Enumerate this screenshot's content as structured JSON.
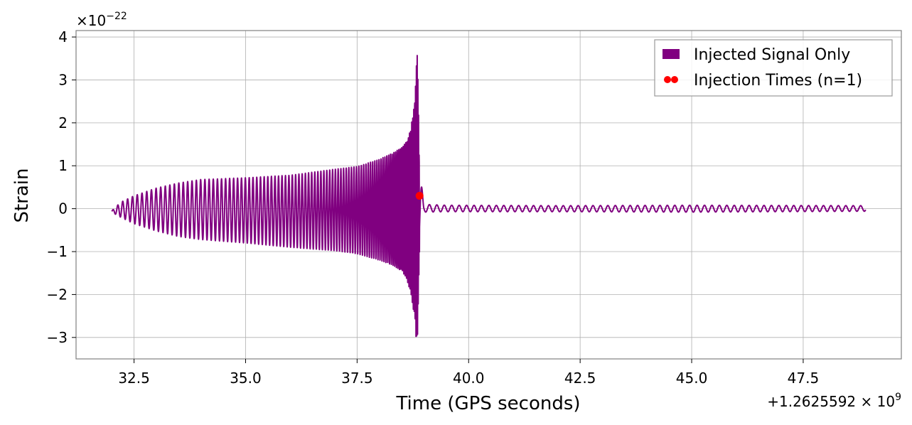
{
  "chart_data": {
    "type": "line",
    "xlabel": "Time (GPS seconds)",
    "ylabel": "Strain",
    "x_offset_label": "+1.2625592 × 10",
    "x_offset_exponent": "9",
    "y_scale_label": "×10",
    "y_scale_exponent": "−22",
    "xlim": [
      31.2,
      49.7
    ],
    "ylim": [
      -3.5,
      4.15
    ],
    "x_ticks": [
      32.5,
      35.0,
      37.5,
      40.0,
      42.5,
      45.0,
      47.5
    ],
    "x_tick_labels": [
      "32.5",
      "35.0",
      "37.5",
      "40.0",
      "42.5",
      "45.0",
      "47.5"
    ],
    "y_ticks": [
      -3,
      -2,
      -1,
      0,
      1,
      2,
      3,
      4
    ],
    "y_tick_labels": [
      "−3",
      "−2",
      "−1",
      "0",
      "1",
      "2",
      "3",
      "4"
    ],
    "grid": true,
    "legend_position": "top-right",
    "series": [
      {
        "name": "Injected Signal Only",
        "kind": "band",
        "color": "#800080",
        "envelope": {
          "x": [
            32.0,
            32.2,
            32.5,
            33.0,
            33.5,
            34.0,
            35.0,
            36.0,
            37.0,
            37.5,
            38.0,
            38.3,
            38.5,
            38.6,
            38.7,
            38.78,
            38.82,
            38.85,
            38.9,
            39.0,
            39.5,
            42.0,
            45.0,
            48.9
          ],
          "upper": [
            -0.05,
            0.15,
            0.3,
            0.48,
            0.6,
            0.68,
            0.72,
            0.78,
            0.92,
            0.98,
            1.15,
            1.3,
            1.42,
            1.55,
            1.85,
            2.4,
            3.2,
            3.75,
            0.9,
            0.1,
            0.08,
            0.07,
            0.08,
            0.07
          ],
          "lower": [
            -0.08,
            -0.2,
            -0.35,
            -0.52,
            -0.65,
            -0.72,
            -0.8,
            -0.9,
            -0.98,
            -1.05,
            -1.2,
            -1.32,
            -1.45,
            -1.6,
            -1.95,
            -2.5,
            -3.0,
            -3.15,
            -0.9,
            -0.08,
            -0.07,
            -0.07,
            -0.08,
            -0.06
          ]
        }
      },
      {
        "name": "Injection Times (n=1)",
        "kind": "points",
        "color": "#ff0000",
        "points": [
          {
            "x": 38.9,
            "y": 0.3
          }
        ]
      }
    ]
  }
}
